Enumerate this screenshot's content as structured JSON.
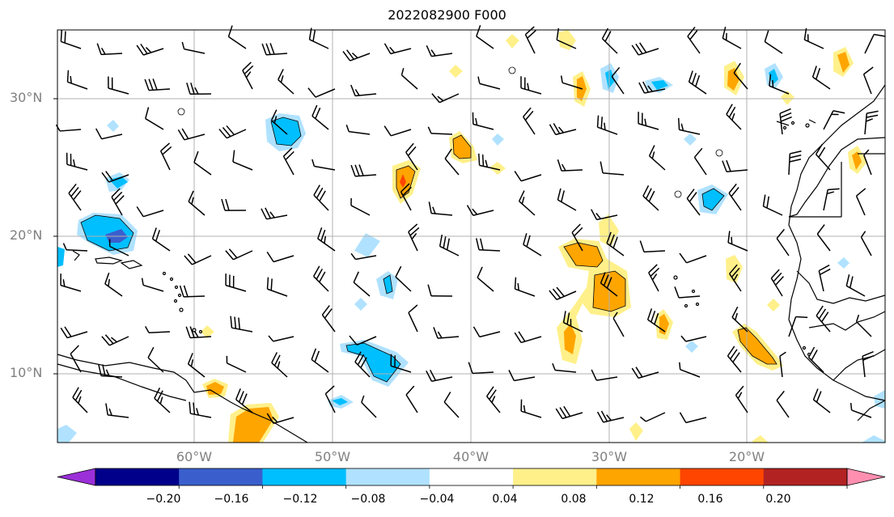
{
  "title": "2022082900 F000",
  "map": {
    "lon_range": [
      -70,
      -10
    ],
    "lat_range": [
      5,
      35
    ],
    "gridlines": true,
    "lat_labels": [
      "30°N",
      "20°N",
      "10°N"
    ],
    "lon_labels": [
      "60°W",
      "50°W",
      "40°W",
      "30°W",
      "20°W"
    ]
  },
  "colorbar": {
    "ticks": [
      "−0.20",
      "−0.16",
      "−0.12",
      "−0.08",
      "−0.04",
      "0.04",
      "0.08",
      "0.12",
      "0.16",
      "0.20"
    ],
    "colors": [
      "#9b30d9",
      "#00008b",
      "#3a5fcd",
      "#00bfff",
      "#b0e2ff",
      "#ffffff",
      "#fff08a",
      "#ffa500",
      "#ff4500",
      "#b22222",
      "#ff8fb0"
    ],
    "extend": "both"
  }
}
